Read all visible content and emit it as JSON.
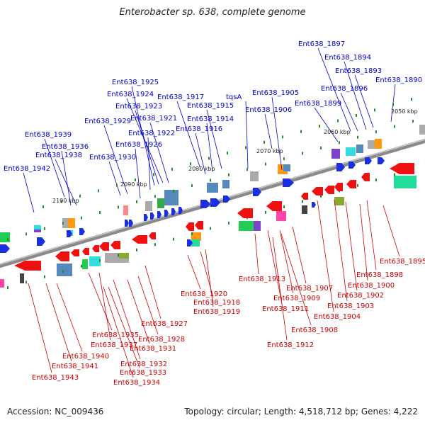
{
  "title": "Enterobacter sp. 638, complete genome",
  "footer": {
    "accession": "Accession: NC_009436",
    "summary": "Topology: circular; Length: 4,518,712 bp; Genes: 4,222"
  },
  "colors": {
    "forward_label": "#0000cc",
    "reverse_label": "#cc0000",
    "backbone": "#8a8a8a",
    "tick_mark": "#2a8a2a"
  },
  "ticks": [
    "2050 kbp",
    "2060 kbp",
    "2070 kbp",
    "2080 kbp",
    "2090 kbp",
    "2100 kbp"
  ],
  "forward_labels": [
    "Ent638_1897",
    "Ent638_1894",
    "Ent638_1893",
    "Ent638_1890",
    "Ent638_1896",
    "Ent638_1905",
    "tqsA",
    "Ent638_1899",
    "Ent638_1906",
    "Ent638_1925",
    "Ent638_1924",
    "Ent638_1917",
    "Ent638_1923",
    "Ent638_1915",
    "Ent638_1921",
    "Ent638_1914",
    "Ent638_1929",
    "Ent638_1916",
    "Ent638_1922",
    "Ent638_1939",
    "Ent638_1926",
    "Ent638_1936",
    "Ent638_1938",
    "Ent638_1930",
    "Ent638_1942"
  ],
  "reverse_labels": [
    "Ent638_1895",
    "Ent638_1898",
    "Ent638_1900",
    "Ent638_1902",
    "Ent638_1903",
    "Ent638_1904",
    "Ent638_1913",
    "Ent638_1907",
    "Ent638_1909",
    "Ent638_1911",
    "Ent638_1908",
    "Ent638_1912",
    "Ent638_1920",
    "Ent638_1918",
    "Ent638_1919",
    "Ent638_1927",
    "Ent638_1935",
    "Ent638_1928",
    "Ent638_1937",
    "Ent638_1931",
    "Ent638_1940",
    "Ent638_1932",
    "Ent638_1941",
    "Ent638_1933",
    "Ent638_1934",
    "Ent638_1943"
  ]
}
